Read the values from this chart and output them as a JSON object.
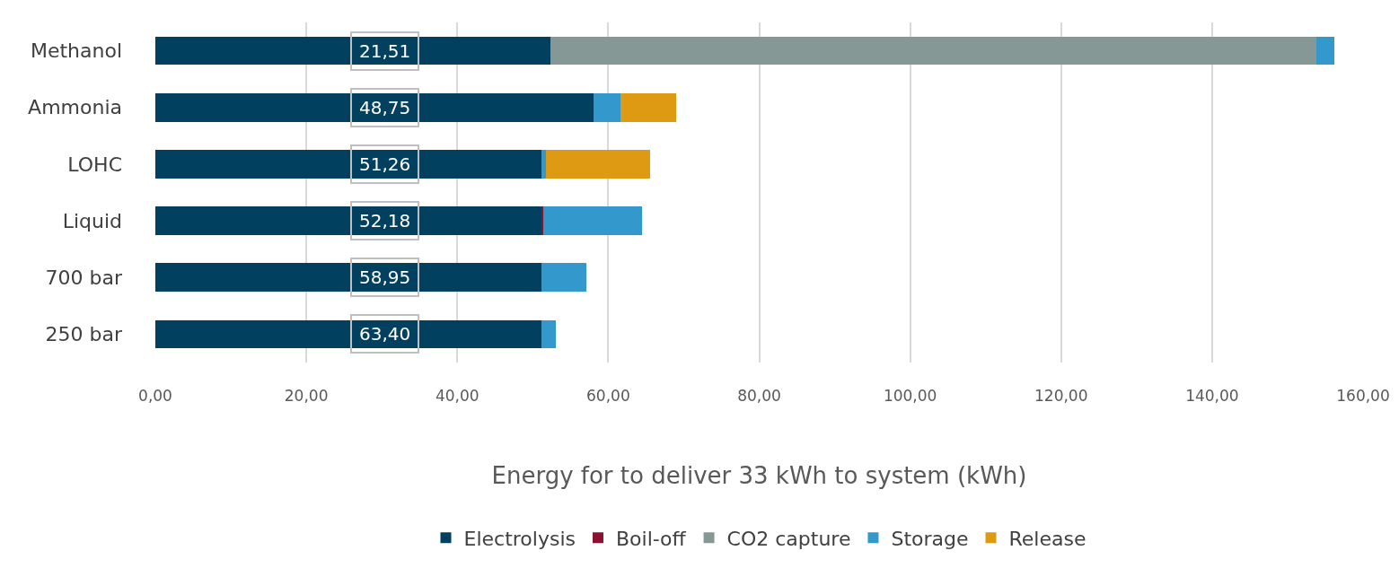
{
  "chart_data": {
    "type": "bar",
    "orientation": "horizontal",
    "stacked": true,
    "categories": [
      "Methanol",
      "Ammonia",
      "LOHC",
      "Liquid",
      "700 bar",
      "250 bar"
    ],
    "series": [
      {
        "name": "Electrolysis",
        "color": "#02405f",
        "values": [
          52.4,
          58.0,
          51.1,
          51.1,
          51.1,
          51.1
        ]
      },
      {
        "name": "Boil-off",
        "color": "#8b1230",
        "values": [
          0,
          0,
          0,
          0.3,
          0,
          0
        ]
      },
      {
        "name": "CO2 capture",
        "color": "#869896",
        "values": [
          101.4,
          0,
          0,
          0,
          0,
          0
        ]
      },
      {
        "name": "Storage",
        "color": "#3399cc",
        "values": [
          2.4,
          3.6,
          0.7,
          13.1,
          6.0,
          2.0
        ]
      },
      {
        "name": "Release",
        "color": "#dd9a12",
        "values": [
          0,
          7.4,
          13.8,
          0,
          0,
          0
        ]
      }
    ],
    "xlim": [
      0,
      160
    ],
    "xticks": [
      {
        "value": 0,
        "label": "0,00"
      },
      {
        "value": 20,
        "label": "20,00"
      },
      {
        "value": 40,
        "label": "40,00"
      },
      {
        "value": 60,
        "label": "60,00"
      },
      {
        "value": 80,
        "label": "80,00"
      },
      {
        "value": 100,
        "label": "100,00"
      },
      {
        "value": 120,
        "label": "120,00"
      },
      {
        "value": 140,
        "label": "140,00"
      },
      {
        "value": 160,
        "label": "160,00"
      }
    ],
    "xlabel": "Energy for to deliver 33 kWh to system (kWh)",
    "annotations": [
      "21,51",
      "48,75",
      "51,26",
      "52,18",
      "58,95",
      "63,40"
    ],
    "grid": "x",
    "legend": "bottom"
  }
}
